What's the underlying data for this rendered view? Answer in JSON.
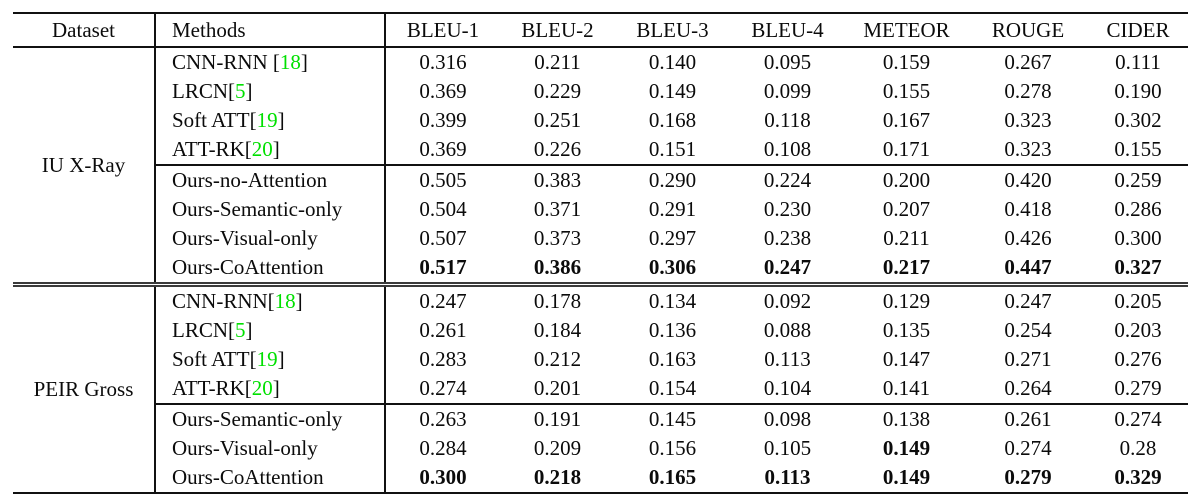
{
  "colors": {
    "citation_green": "#00e000",
    "rule": "#111111"
  },
  "table": {
    "headers": [
      "Dataset",
      "Methods",
      "BLEU-1",
      "BLEU-2",
      "BLEU-3",
      "BLEU-4",
      "METEOR",
      "ROUGE",
      "CIDER"
    ],
    "sections": [
      {
        "dataset": "IU X-Ray",
        "groups": [
          {
            "rows": [
              {
                "method": "CNN-RNN ",
                "cite": "18",
                "values": [
                  "0.316",
                  "0.211",
                  "0.140",
                  "0.095",
                  "0.159",
                  "0.267",
                  "0.111"
                ],
                "bold_values": []
              },
              {
                "method": "LRCN",
                "cite": "5",
                "values": [
                  "0.369",
                  "0.229",
                  "0.149",
                  "0.099",
                  "0.155",
                  "0.278",
                  "0.190"
                ],
                "bold_values": []
              },
              {
                "method": "Soft ATT",
                "cite": "19",
                "values": [
                  "0.399",
                  "0.251",
                  "0.168",
                  "0.118",
                  "0.167",
                  "0.323",
                  "0.302"
                ],
                "bold_values": []
              },
              {
                "method": "ATT-RK",
                "cite": "20",
                "values": [
                  "0.369",
                  "0.226",
                  "0.151",
                  "0.108",
                  "0.171",
                  "0.323",
                  "0.155"
                ],
                "bold_values": []
              }
            ]
          },
          {
            "rows": [
              {
                "method": "Ours-no-Attention",
                "cite": null,
                "values": [
                  "0.505",
                  "0.383",
                  "0.290",
                  "0.224",
                  "0.200",
                  "0.420",
                  "0.259"
                ],
                "bold_values": []
              },
              {
                "method": "Ours-Semantic-only",
                "cite": null,
                "values": [
                  "0.504",
                  "0.371",
                  "0.291",
                  "0.230",
                  "0.207",
                  "0.418",
                  "0.286"
                ],
                "bold_values": []
              },
              {
                "method": "Ours-Visual-only",
                "cite": null,
                "values": [
                  "0.507",
                  "0.373",
                  "0.297",
                  "0.238",
                  "0.211",
                  "0.426",
                  "0.300"
                ],
                "bold_values": []
              },
              {
                "method": "Ours-CoAttention",
                "cite": null,
                "values": [
                  "0.517",
                  "0.386",
                  "0.306",
                  "0.247",
                  "0.217",
                  "0.447",
                  "0.327"
                ],
                "bold_values": [
                  0,
                  1,
                  2,
                  3,
                  4,
                  5,
                  6
                ]
              }
            ]
          }
        ]
      },
      {
        "dataset": "PEIR Gross",
        "groups": [
          {
            "rows": [
              {
                "method": "CNN-RNN",
                "cite": "18",
                "values": [
                  "0.247",
                  "0.178",
                  "0.134",
                  "0.092",
                  "0.129",
                  "0.247",
                  "0.205"
                ],
                "bold_values": []
              },
              {
                "method": "LRCN",
                "cite": "5",
                "values": [
                  "0.261",
                  "0.184",
                  "0.136",
                  "0.088",
                  "0.135",
                  "0.254",
                  "0.203"
                ],
                "bold_values": []
              },
              {
                "method": "Soft ATT",
                "cite": "19",
                "values": [
                  "0.283",
                  "0.212",
                  "0.163",
                  "0.113",
                  "0.147",
                  "0.271",
                  "0.276"
                ],
                "bold_values": []
              },
              {
                "method": "ATT-RK",
                "cite": "20",
                "values": [
                  "0.274",
                  "0.201",
                  "0.154",
                  "0.104",
                  "0.141",
                  "0.264",
                  "0.279"
                ],
                "bold_values": []
              }
            ]
          },
          {
            "rows": [
              {
                "method": "Ours-Semantic-only",
                "cite": null,
                "values": [
                  "0.263",
                  "0.191",
                  "0.145",
                  "0.098",
                  "0.138",
                  "0.261",
                  "0.274"
                ],
                "bold_values": []
              },
              {
                "method": "Ours-Visual-only",
                "cite": null,
                "values": [
                  "0.284",
                  "0.209",
                  "0.156",
                  "0.105",
                  "0.149",
                  "0.274",
                  "0.28"
                ],
                "bold_values": [
                  4
                ]
              },
              {
                "method": "Ours-CoAttention",
                "cite": null,
                "values": [
                  "0.300",
                  "0.218",
                  "0.165",
                  "0.113",
                  "0.149",
                  "0.279",
                  "0.329"
                ],
                "bold_values": [
                  0,
                  1,
                  2,
                  3,
                  4,
                  5,
                  6
                ]
              }
            ]
          }
        ]
      }
    ]
  }
}
